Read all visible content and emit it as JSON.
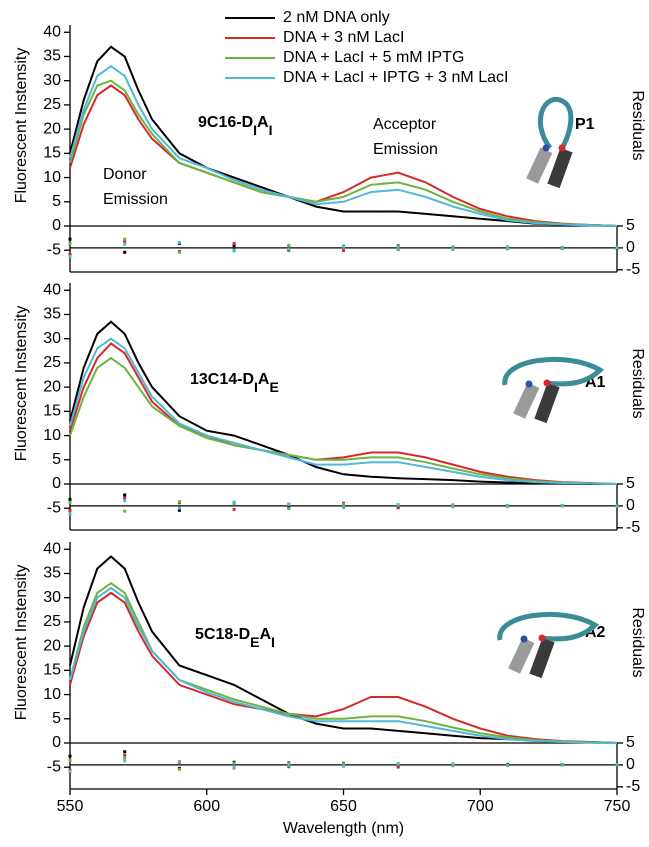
{
  "chart_data": [
    {
      "type": "line",
      "ylabel": "Fluorescent Instensity",
      "y2label": "Residuals",
      "panel_label": [
        "9C16-D",
        "I",
        "A",
        "I"
      ],
      "construct": "P1",
      "annotations": [
        {
          "lines": [
            "Donor",
            "Emission"
          ],
          "color": "#000000"
        },
        {
          "lines": [
            "Acceptor",
            "Emission"
          ],
          "color": "#d42a2a"
        }
      ],
      "x": [
        550,
        555,
        560,
        565,
        570,
        575,
        580,
        590,
        600,
        610,
        620,
        630,
        640,
        650,
        660,
        670,
        680,
        690,
        700,
        710,
        720,
        730,
        740,
        750
      ],
      "xlim": [
        550,
        750
      ],
      "ylim": [
        -9.5,
        41.5
      ],
      "yticks": [
        -5,
        0,
        5,
        10,
        15,
        20,
        25,
        30,
        35,
        40
      ],
      "y2lim": [
        -5.5,
        5
      ],
      "y2ticks": [
        5,
        0,
        -5
      ],
      "residual_x": [
        550,
        570,
        590,
        610,
        630,
        650,
        670,
        690,
        710,
        730,
        750
      ],
      "series": [
        {
          "name": "2 nM DNA only",
          "color": "#000000",
          "values": [
            15,
            26,
            34,
            37,
            35,
            28,
            22,
            15,
            12,
            10,
            8,
            6,
            4,
            3,
            3,
            3,
            2.5,
            2,
            1.5,
            1,
            0.5,
            0.3,
            0.2,
            0
          ],
          "residuals": [
            2,
            -1,
            1,
            0.5,
            -0.5,
            0.3,
            -0.2,
            0.2,
            0,
            0.1,
            -0.1
          ]
        },
        {
          "name": "DNA + 3 nM LacI",
          "color": "#d42a2a",
          "values": [
            12,
            21,
            27,
            29,
            27,
            22,
            18,
            13,
            11,
            9,
            7,
            6,
            5,
            7,
            10,
            11,
            9,
            6,
            3.5,
            2,
            1,
            0.5,
            0.2,
            0
          ],
          "residuals": [
            -1.5,
            1.5,
            -0.8,
            1,
            0.4,
            -0.6,
            0.5,
            -0.3,
            0.2,
            -0.1,
            0
          ]
        },
        {
          "name": "DNA + LacI + 5 mM IPTG",
          "color": "#6cb33f",
          "values": [
            13,
            23,
            29,
            30,
            28,
            23,
            19,
            13,
            11,
            9,
            7,
            6,
            5,
            6,
            8.5,
            9,
            7.5,
            5,
            3,
            1.5,
            0.8,
            0.4,
            0.2,
            0
          ],
          "residuals": [
            1,
            2,
            -1,
            -0.5,
            0.6,
            0.3,
            -0.4,
            0.2,
            -0.2,
            0.1,
            0
          ]
        },
        {
          "name": "DNA + LacI + IPTG + 3 nM LacI",
          "color": "#4fb8d8",
          "values": [
            14,
            24,
            31,
            33,
            31,
            25,
            20,
            14,
            12,
            9.5,
            7.5,
            6,
            4.5,
            5,
            7,
            7.5,
            6,
            4,
            2.5,
            1.2,
            0.6,
            0.3,
            0.1,
            0
          ],
          "residuals": [
            -2,
            0.8,
            1.2,
            -0.7,
            -0.3,
            0.5,
            0.2,
            -0.3,
            0.1,
            0,
            0.1
          ]
        }
      ]
    },
    {
      "type": "line",
      "ylabel": "Fluorescent Instensity",
      "y2label": "Residuals",
      "panel_label": [
        "13C14-D",
        "I",
        "A",
        "E"
      ],
      "construct": "A1",
      "x": [
        550,
        555,
        560,
        565,
        570,
        575,
        580,
        590,
        600,
        610,
        620,
        630,
        640,
        650,
        660,
        670,
        680,
        690,
        700,
        710,
        720,
        730,
        740,
        750
      ],
      "xlim": [
        550,
        750
      ],
      "ylim": [
        -9.5,
        41.5
      ],
      "yticks": [
        -5,
        0,
        5,
        10,
        15,
        20,
        25,
        30,
        35,
        40
      ],
      "y2lim": [
        -5.5,
        5
      ],
      "y2ticks": [
        5,
        0,
        -5
      ],
      "residual_x": [
        550,
        570,
        590,
        610,
        630,
        650,
        670,
        690,
        710,
        730,
        750
      ],
      "series": [
        {
          "color": "#000000",
          "values": [
            13,
            24,
            31,
            33.5,
            31,
            25,
            20,
            14,
            11,
            10,
            8,
            6,
            3.5,
            2,
            1.5,
            1.2,
            1,
            0.8,
            0.5,
            0.3,
            0.2,
            0.1,
            0,
            0
          ],
          "residuals": [
            1.5,
            2.5,
            -1,
            0.6,
            -0.4,
            0.2,
            -0.3,
            0.1,
            0,
            0.1,
            0
          ]
        },
        {
          "color": "#d42a2a",
          "values": [
            11,
            20,
            26,
            29,
            27,
            22,
            17,
            12,
            10,
            8,
            7,
            6,
            5,
            5.5,
            6.5,
            6.5,
            5.5,
            4,
            2.5,
            1.5,
            0.8,
            0.4,
            0.2,
            0
          ],
          "residuals": [
            -1,
            1.8,
            0.7,
            -0.8,
            0.4,
            0.6,
            -0.4,
            0.2,
            -0.1,
            0,
            0
          ]
        },
        {
          "color": "#6cb33f",
          "values": [
            10,
            18,
            24,
            26,
            24,
            20,
            16,
            12,
            9.5,
            8,
            7,
            6,
            5,
            5,
            5.5,
            5.5,
            4.5,
            3.2,
            2,
            1.2,
            0.6,
            0.3,
            0.1,
            0
          ],
          "residuals": [
            0.8,
            -1.2,
            1,
            0.5,
            -0.6,
            0.3,
            0.2,
            -0.2,
            0.1,
            0,
            -0.1
          ]
        },
        {
          "color": "#4fb8d8",
          "values": [
            12,
            22,
            28,
            30,
            28,
            23,
            18,
            12.5,
            10,
            8.5,
            7,
            5.5,
            4,
            4,
            4.5,
            4.5,
            3.5,
            2.5,
            1.5,
            0.8,
            0.4,
            0.2,
            0.1,
            0
          ],
          "residuals": [
            -1.8,
            1.2,
            -0.5,
            0.9,
            0.3,
            -0.4,
            0.3,
            0.1,
            -0.1,
            0.1,
            0
          ]
        }
      ]
    },
    {
      "type": "line",
      "ylabel": "Fluorescent Instensity",
      "y2label": "Residuals",
      "panel_label": [
        "5C18-D",
        "E",
        "A",
        "I"
      ],
      "construct": "A2",
      "xlabel": "Wavelength (nm)",
      "x": [
        550,
        555,
        560,
        565,
        570,
        575,
        580,
        590,
        600,
        610,
        620,
        630,
        640,
        650,
        660,
        670,
        680,
        690,
        700,
        710,
        720,
        730,
        740,
        750
      ],
      "xlim": [
        550,
        750
      ],
      "xticks": [
        550,
        600,
        650,
        700,
        750
      ],
      "ylim": [
        -9.5,
        41.5
      ],
      "yticks": [
        -5,
        0,
        5,
        10,
        15,
        20,
        25,
        30,
        35,
        40
      ],
      "y2lim": [
        -5.5,
        5
      ],
      "y2ticks": [
        5,
        0,
        -5
      ],
      "residual_x": [
        550,
        570,
        590,
        610,
        630,
        650,
        670,
        690,
        710,
        730,
        750
      ],
      "series": [
        {
          "color": "#000000",
          "values": [
            16,
            28,
            36,
            38.5,
            36,
            29,
            23,
            16,
            14,
            12,
            9,
            6,
            4,
            3,
            3,
            2.5,
            2,
            1.5,
            1,
            0.8,
            0.5,
            0.3,
            0.2,
            0
          ],
          "residuals": [
            2,
            3,
            -0.8,
            0.6,
            -0.4,
            0.3,
            -0.2,
            0.1,
            0.1,
            0,
            0
          ]
        },
        {
          "color": "#d42a2a",
          "values": [
            12,
            22,
            29,
            31,
            29,
            23,
            18,
            12,
            10,
            8,
            7,
            6,
            5.5,
            7,
            9.5,
            9.5,
            7.5,
            5,
            3,
            1.5,
            0.8,
            0.4,
            0.2,
            0
          ],
          "residuals": [
            -1.2,
            2.2,
            0.6,
            -0.7,
            0.5,
            0.4,
            -0.5,
            0.2,
            -0.1,
            0.1,
            0
          ]
        },
        {
          "color": "#6cb33f",
          "values": [
            13,
            24,
            31,
            33,
            31,
            25,
            19,
            13,
            11,
            9,
            7.5,
            6,
            5,
            5,
            5.5,
            5.5,
            4.5,
            3.2,
            2,
            1.2,
            0.6,
            0.3,
            0.1,
            0
          ],
          "residuals": [
            1,
            1.6,
            -1,
            0.4,
            -0.3,
            0.2,
            0.3,
            -0.2,
            0,
            0.1,
            0
          ]
        },
        {
          "color": "#4fb8d8",
          "values": [
            13,
            23,
            30,
            32,
            30,
            24,
            19,
            13,
            10.5,
            8.5,
            7,
            5.5,
            4.5,
            4.5,
            4.5,
            4.5,
            3.5,
            2.5,
            1.5,
            0.8,
            0.4,
            0.2,
            0.1,
            0
          ],
          "residuals": [
            -1.5,
            0.9,
            0.8,
            -0.6,
            0.2,
            -0.3,
            0.2,
            0.1,
            -0.1,
            0,
            0.1
          ]
        }
      ]
    }
  ]
}
